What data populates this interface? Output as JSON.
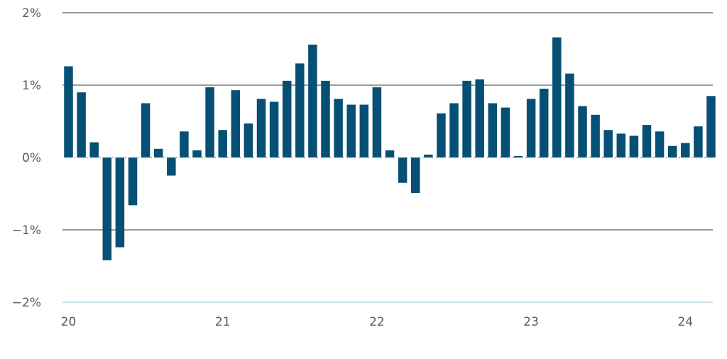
{
  "chart_data": {
    "type": "bar",
    "title": "",
    "xlabel": "",
    "ylabel": "",
    "ylim": [
      -2,
      2
    ],
    "y_ticks": [
      {
        "value": 2,
        "label": "2%"
      },
      {
        "value": 1,
        "label": "1%"
      },
      {
        "value": 0,
        "label": "0%"
      },
      {
        "value": -1,
        "label": "−1%"
      },
      {
        "value": -2,
        "label": "−2%"
      }
    ],
    "x_ticks": [
      {
        "index": 0,
        "label": "20"
      },
      {
        "index": 12,
        "label": "21"
      },
      {
        "index": 24,
        "label": "22"
      },
      {
        "index": 36,
        "label": "23"
      },
      {
        "index": 48,
        "label": "24"
      }
    ],
    "grid": true,
    "bar_color": "#064f75",
    "values": [
      1.26,
      0.9,
      0.21,
      -1.42,
      -1.24,
      -0.66,
      0.75,
      0.12,
      -0.25,
      0.36,
      0.1,
      0.97,
      0.38,
      0.93,
      0.47,
      0.81,
      0.77,
      1.06,
      1.3,
      1.56,
      1.06,
      0.81,
      0.73,
      0.73,
      0.97,
      0.1,
      -0.35,
      -0.49,
      0.04,
      0.61,
      0.75,
      1.06,
      1.08,
      0.75,
      0.69,
      0.02,
      0.81,
      0.95,
      1.66,
      1.16,
      0.71,
      0.59,
      0.38,
      0.33,
      0.3,
      0.45,
      0.36,
      0.16,
      0.2,
      0.43,
      0.85
    ]
  }
}
